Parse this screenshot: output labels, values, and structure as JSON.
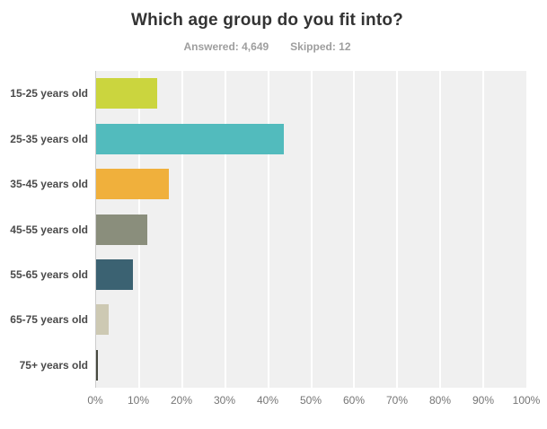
{
  "header": {
    "title": "Which age group do you fit into?",
    "answered": "Answered: 4,649",
    "skipped": "Skipped: 12"
  },
  "chart_data": {
    "type": "bar",
    "orientation": "horizontal",
    "title": "Which age group do you fit into?",
    "subtitle": "Answered: 4,649   Skipped: 12",
    "categories": [
      "15-25 years old",
      "25-35 years old",
      "35-45 years old",
      "45-55 years old",
      "55-65 years old",
      "65-75 years old",
      "75+ years old"
    ],
    "values": [
      14.2,
      43.6,
      17.0,
      11.8,
      8.6,
      2.9,
      0.4
    ],
    "unit": "percent",
    "xlabel": "",
    "ylabel": "",
    "xlim": [
      0,
      100
    ],
    "x_ticks": [
      "0%",
      "10%",
      "20%",
      "30%",
      "40%",
      "50%",
      "60%",
      "70%",
      "80%",
      "90%",
      "100%"
    ],
    "grid": "vertical white gridlines on gray plot background",
    "legend": "none",
    "bar_colors": [
      "#cbd53e",
      "#52bbbd",
      "#f0b03c",
      "#8a8e7c",
      "#3b6272",
      "#cdc9b3",
      "#47493f"
    ]
  },
  "colors": {
    "plot_background": "#f0f0f0",
    "gridline": "#ffffff",
    "axis_line": "#cccccc",
    "title_text": "#333333",
    "subtitle_text": "#9e9e9e",
    "category_label_text": "#4a4a4a",
    "tick_label_text": "#757575"
  }
}
